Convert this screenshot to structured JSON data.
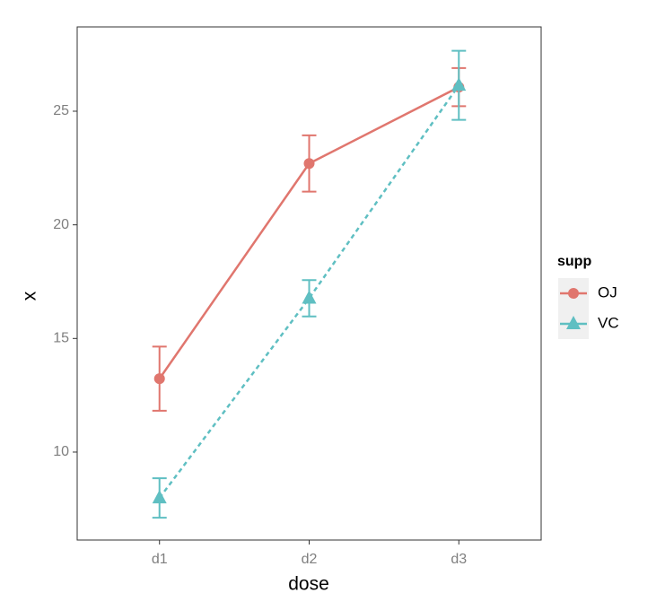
{
  "chart_data": {
    "type": "line",
    "x_label": "dose",
    "y_label": "x",
    "categories": [
      "d1",
      "d2",
      "d3"
    ],
    "series": [
      {
        "name": "OJ",
        "color": "#e0766e",
        "marker": "circle",
        "linestyle": "solid",
        "values": [
          13.23,
          22.7,
          26.06
        ],
        "errors": [
          1.41,
          1.24,
          0.84
        ]
      },
      {
        "name": "VC",
        "color": "#5fbfc2",
        "marker": "triangle",
        "linestyle": "dashed",
        "values": [
          7.98,
          16.77,
          26.14
        ],
        "errors": [
          0.87,
          0.8,
          1.52
        ]
      }
    ],
    "legend_title": "supp",
    "legend_position": "right",
    "ylim": [
      6.13,
      28.71
    ],
    "yticks": [
      10,
      15,
      20,
      25
    ],
    "grid": false
  }
}
